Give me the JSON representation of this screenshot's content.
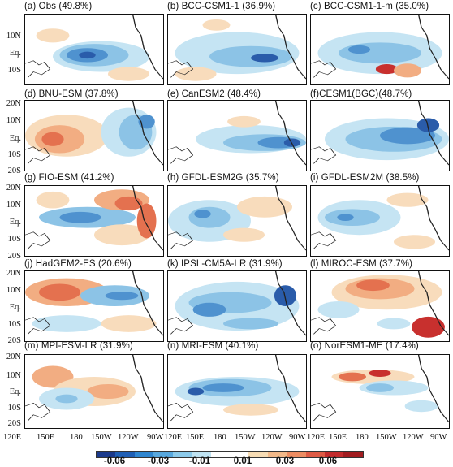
{
  "panels": [
    {
      "label": "(a) Obs (49.8%)"
    },
    {
      "label": "(b) BCC-CSM1-1 (36.9%)"
    },
    {
      "label": "(c) BCC-CSM1-1-m (35.0%)"
    },
    {
      "label": "(d) BNU-ESM (37.8%)"
    },
    {
      "label": "(e) CanESM2 (48.4%)"
    },
    {
      "label": "(f)CESM1(BGC)(48.7%)"
    },
    {
      "label": "(g) FIO-ESM (41.2%)"
    },
    {
      "label": "(h) GFDL-ESM2G (35.7%)"
    },
    {
      "label": "(i) GFDL-ESM2M (38.5%)"
    },
    {
      "label": "(j) HadGEM2-ES (20.6%)"
    },
    {
      "label": "(k) IPSL-CM5A-LR (31.9%)"
    },
    {
      "label": "(l) MIROC-ESM (37.7%)"
    },
    {
      "label": "(m) MPI-ESM-LR (31.9%)"
    },
    {
      "label": "(n) MRI-ESM (40.1%)"
    },
    {
      "label": "(o) NorESM1-ME (17.4%)"
    }
  ],
  "y_axis_first_row": [
    "10N",
    "Eq.",
    "10S"
  ],
  "y_axis_other_rows": [
    "20N",
    "10N",
    "Eq.",
    "10S",
    "20S"
  ],
  "x_axis": {
    "left_edge": "120E",
    "interior_ticks": [
      "150E",
      "180",
      "150W",
      "120W",
      "90W"
    ]
  },
  "colorbar": {
    "labels": [
      "-0.06",
      "-0.03",
      "-0.01",
      "0.01",
      "0.03",
      "0.06"
    ],
    "colors": [
      "#1b3a8c",
      "#1f5fb5",
      "#2f86d0",
      "#58a8de",
      "#8ccaea",
      "#bfe3f2",
      "#ffffff",
      "#ffffff",
      "#f7dcb4",
      "#f3b989",
      "#ec8c62",
      "#de5a45",
      "#c22b2d",
      "#a11c20"
    ]
  }
}
